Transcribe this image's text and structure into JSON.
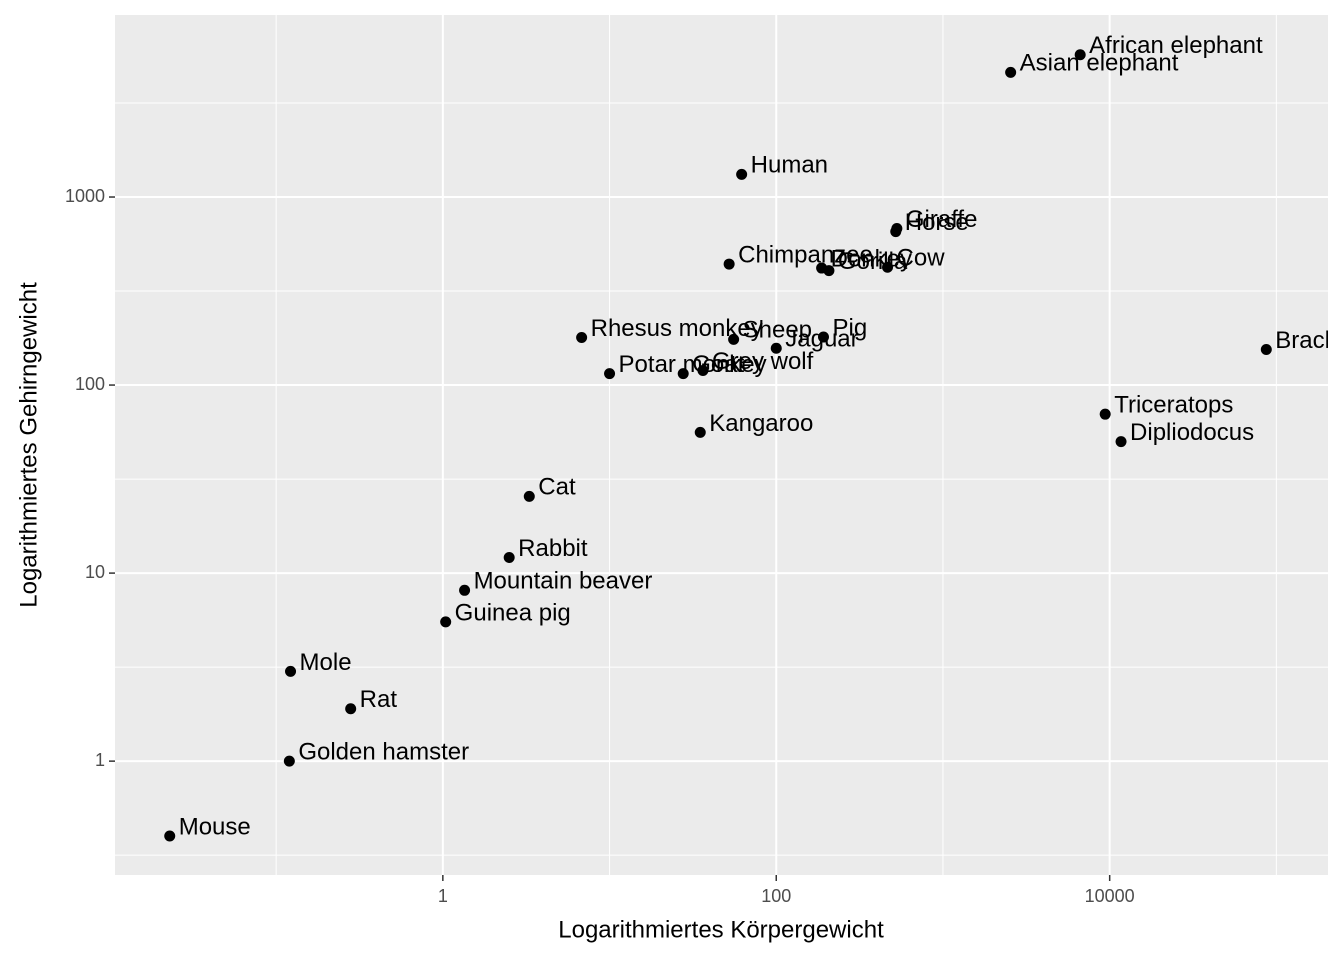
{
  "chart_data": {
    "type": "scatter",
    "x_label": "Logarithmiertes Körpergewicht",
    "y_label": "Logarithmiertes Gehirngewicht",
    "xscale": "log",
    "yscale": "log",
    "grid": true,
    "color": "#000000",
    "xlim": [
      0.0108,
      204000
    ],
    "ylim": [
      0.248,
      9290
    ],
    "xticks": [
      1,
      100,
      10000
    ],
    "yticks": [
      1,
      10,
      100,
      1000
    ],
    "x_minor_grid": [
      0.1,
      10,
      1000,
      100000
    ],
    "y_minor_grid": [
      0.3162,
      3.162,
      31.62,
      316.2,
      3162
    ],
    "point_labels": [
      "Mountain beaver",
      "Cow",
      "Grey wolf",
      "Goat",
      "Guinea pig",
      "Dipliodocus",
      "Asian elephant",
      "Donkey",
      "Horse",
      "Potar monkey",
      "Cat",
      "Giraffe",
      "Gorilla",
      "Human",
      "African elephant",
      "Triceratops",
      "Rhesus monkey",
      "Kangaroo",
      "Golden hamster",
      "Mouse",
      "Rabbit",
      "Sheep",
      "Jaguar",
      "Chimpanzee",
      "Rat",
      "Brachiosaurus",
      "Mole",
      "Pig"
    ],
    "x": [
      1.35,
      465,
      36.33,
      27.66,
      1.04,
      11700,
      2547,
      187.1,
      521,
      10,
      3.3,
      529,
      207,
      62,
      6654,
      9400,
      6.8,
      35,
      0.12,
      0.023,
      2.5,
      55.5,
      100,
      52.16,
      0.28,
      87000,
      0.122,
      192
    ],
    "values": [
      8.1,
      423,
      119.5,
      115,
      5.5,
      50,
      4603,
      419,
      655,
      115,
      25.6,
      680,
      406,
      1320,
      5712,
      70,
      179,
      56,
      1,
      0.4,
      12.1,
      175,
      157,
      440,
      1.9,
      154.5,
      3,
      180
    ]
  }
}
